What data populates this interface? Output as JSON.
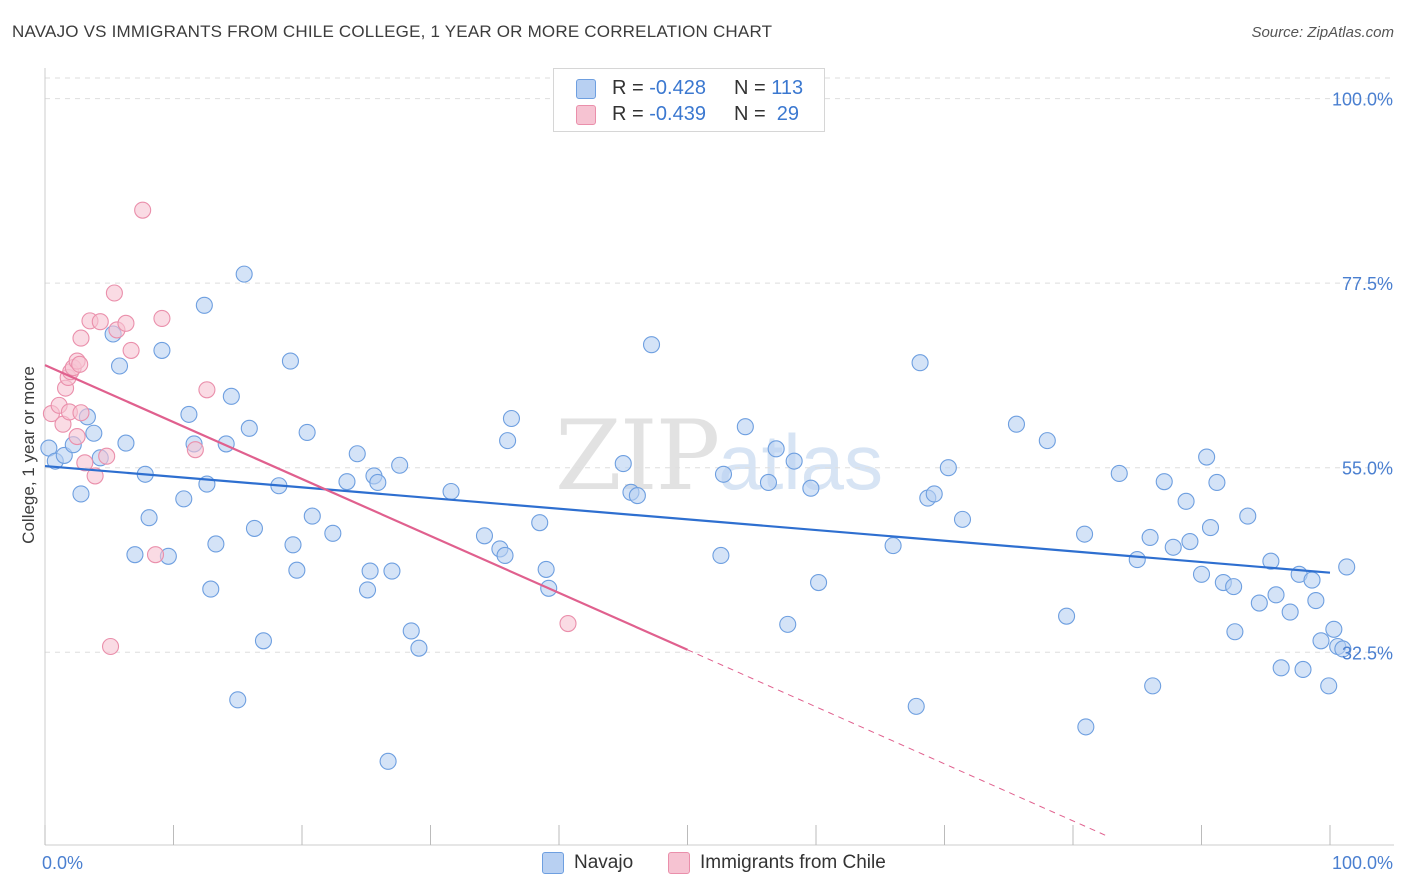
{
  "title": "NAVAJO VS IMMIGRANTS FROM CHILE COLLEGE, 1 YEAR OR MORE CORRELATION CHART",
  "source": "Source: ZipAtlas.com",
  "watermark": {
    "zip": "ZIP",
    "atlas": "atlas"
  },
  "colors": {
    "navajo_fill": "#b8d0f2",
    "navajo_stroke": "#6e9fe0",
    "navajo_line": "#2e6fd0",
    "chile_fill": "#f6c3d2",
    "chile_stroke": "#ea8fab",
    "chile_line": "#e0608e",
    "tick_text": "#4a7fd0",
    "grid": "#dedede"
  },
  "legend": {
    "rows": [
      {
        "r_label": "R = ",
        "r_value": "-0.428",
        "n_label": "N = ",
        "n_value": "113"
      },
      {
        "r_label": "R = ",
        "r_value": "-0.439",
        "n_label": "N = ",
        "n_value": " 29"
      }
    ]
  },
  "bottom_legend": {
    "navajo": "Navajo",
    "chile": "Immigrants from Chile"
  },
  "chart_data": {
    "type": "scatter",
    "title": "NAVAJO VS IMMIGRANTS FROM CHILE COLLEGE, 1 YEAR OR MORE CORRELATION CHART",
    "xlabel": "",
    "ylabel": "College, 1 year or more",
    "xlim": [
      0,
      100
    ],
    "ylim": [
      9,
      103
    ],
    "x_tick_labels": [
      "0.0%",
      "100.0%"
    ],
    "y_ticks": [
      {
        "value": 100,
        "label": "100.0%"
      },
      {
        "value": 77.5,
        "label": "77.5%"
      },
      {
        "value": 55,
        "label": "55.0%"
      },
      {
        "value": 32.5,
        "label": "32.5%"
      }
    ],
    "grid": "horizontal dashed",
    "series": [
      {
        "name": "Navajo",
        "r": -0.428,
        "n": 113,
        "trend": {
          "x0": 0,
          "y0": 55.2,
          "x1": 100,
          "y1": 42.2
        },
        "points": [
          [
            0.3,
            57.4
          ],
          [
            0.8,
            55.8
          ],
          [
            1.5,
            56.5
          ],
          [
            2.2,
            57.8
          ],
          [
            2.8,
            51.8
          ],
          [
            3.3,
            61.2
          ],
          [
            3.8,
            59.2
          ],
          [
            4.3,
            56.2
          ],
          [
            5.3,
            71.3
          ],
          [
            5.8,
            67.4
          ],
          [
            6.3,
            58.0
          ],
          [
            7.0,
            44.4
          ],
          [
            7.8,
            54.2
          ],
          [
            8.1,
            48.9
          ],
          [
            9.1,
            69.3
          ],
          [
            9.6,
            44.2
          ],
          [
            10.8,
            51.2
          ],
          [
            11.2,
            61.5
          ],
          [
            11.6,
            57.9
          ],
          [
            12.4,
            74.8
          ],
          [
            12.6,
            53.0
          ],
          [
            12.9,
            40.2
          ],
          [
            13.3,
            45.7
          ],
          [
            14.1,
            57.9
          ],
          [
            14.5,
            63.7
          ],
          [
            15.0,
            26.7
          ],
          [
            15.5,
            78.6
          ],
          [
            15.9,
            59.8
          ],
          [
            16.3,
            47.6
          ],
          [
            17.0,
            33.9
          ],
          [
            18.2,
            52.8
          ],
          [
            19.1,
            68.0
          ],
          [
            19.3,
            45.6
          ],
          [
            19.6,
            42.5
          ],
          [
            20.4,
            59.3
          ],
          [
            20.8,
            49.1
          ],
          [
            22.4,
            47.0
          ],
          [
            23.5,
            53.3
          ],
          [
            24.3,
            56.7
          ],
          [
            25.1,
            40.1
          ],
          [
            25.3,
            42.4
          ],
          [
            25.6,
            54.0
          ],
          [
            25.9,
            53.2
          ],
          [
            26.7,
            19.2
          ],
          [
            27.0,
            42.4
          ],
          [
            27.6,
            55.3
          ],
          [
            28.5,
            35.1
          ],
          [
            29.1,
            33.0
          ],
          [
            31.6,
            52.1
          ],
          [
            34.2,
            46.7
          ],
          [
            35.4,
            45.1
          ],
          [
            35.8,
            44.3
          ],
          [
            36.0,
            58.3
          ],
          [
            36.3,
            61.0
          ],
          [
            38.5,
            48.3
          ],
          [
            39.0,
            42.6
          ],
          [
            39.2,
            40.3
          ],
          [
            45.0,
            55.5
          ],
          [
            45.6,
            52.0
          ],
          [
            46.1,
            51.6
          ],
          [
            47.2,
            70.0
          ],
          [
            52.6,
            44.3
          ],
          [
            52.8,
            54.2
          ],
          [
            54.5,
            60.0
          ],
          [
            56.3,
            53.2
          ],
          [
            56.9,
            57.3
          ],
          [
            57.8,
            35.9
          ],
          [
            58.3,
            55.8
          ],
          [
            59.6,
            52.5
          ],
          [
            60.2,
            41.0
          ],
          [
            66.0,
            45.5
          ],
          [
            68.1,
            67.8
          ],
          [
            67.8,
            25.9
          ],
          [
            68.7,
            51.3
          ],
          [
            69.2,
            51.8
          ],
          [
            70.3,
            55.0
          ],
          [
            71.4,
            48.7
          ],
          [
            75.6,
            60.3
          ],
          [
            78.0,
            58.3
          ],
          [
            79.5,
            36.9
          ],
          [
            80.9,
            46.9
          ],
          [
            81.0,
            23.4
          ],
          [
            83.6,
            54.3
          ],
          [
            85.0,
            43.8
          ],
          [
            86.2,
            28.4
          ],
          [
            86.0,
            46.5
          ],
          [
            87.1,
            53.3
          ],
          [
            87.8,
            45.3
          ],
          [
            88.8,
            50.9
          ],
          [
            89.1,
            46.0
          ],
          [
            90.0,
            42.0
          ],
          [
            90.4,
            56.3
          ],
          [
            90.7,
            47.7
          ],
          [
            91.2,
            53.2
          ],
          [
            91.7,
            41.0
          ],
          [
            92.5,
            40.5
          ],
          [
            92.6,
            35.0
          ],
          [
            93.6,
            49.1
          ],
          [
            94.5,
            38.5
          ],
          [
            95.4,
            43.6
          ],
          [
            95.8,
            39.5
          ],
          [
            96.2,
            30.6
          ],
          [
            96.9,
            37.4
          ],
          [
            97.6,
            42.0
          ],
          [
            97.9,
            30.4
          ],
          [
            98.6,
            41.3
          ],
          [
            98.9,
            38.8
          ],
          [
            99.3,
            33.9
          ],
          [
            99.9,
            28.4
          ],
          [
            100.3,
            35.3
          ],
          [
            100.6,
            33.2
          ],
          [
            101.0,
            32.9
          ],
          [
            101.3,
            42.9
          ]
        ]
      },
      {
        "name": "Immigrants from Chile",
        "r": -0.439,
        "n": 29,
        "trend": {
          "x0": 0,
          "y0": 67.5,
          "x1": 50,
          "y1": 32.8,
          "dashed_to": {
            "x": 82.5,
            "y": 10.2
          }
        },
        "points": [
          [
            0.5,
            61.6
          ],
          [
            1.1,
            62.6
          ],
          [
            1.4,
            60.3
          ],
          [
            1.6,
            64.7
          ],
          [
            1.8,
            66.0
          ],
          [
            1.9,
            61.8
          ],
          [
            2.0,
            66.7
          ],
          [
            2.2,
            67.2
          ],
          [
            2.5,
            58.8
          ],
          [
            2.5,
            68.0
          ],
          [
            2.7,
            67.6
          ],
          [
            2.8,
            70.8
          ],
          [
            2.8,
            61.7
          ],
          [
            3.1,
            55.6
          ],
          [
            3.5,
            72.9
          ],
          [
            3.9,
            54.0
          ],
          [
            4.3,
            72.8
          ],
          [
            4.8,
            56.4
          ],
          [
            5.1,
            33.2
          ],
          [
            5.4,
            76.3
          ],
          [
            5.6,
            71.8
          ],
          [
            6.3,
            72.6
          ],
          [
            6.7,
            69.3
          ],
          [
            7.6,
            86.4
          ],
          [
            8.6,
            44.4
          ],
          [
            9.1,
            73.2
          ],
          [
            11.7,
            57.2
          ],
          [
            12.6,
            64.5
          ],
          [
            40.7,
            36.0
          ]
        ]
      }
    ]
  }
}
